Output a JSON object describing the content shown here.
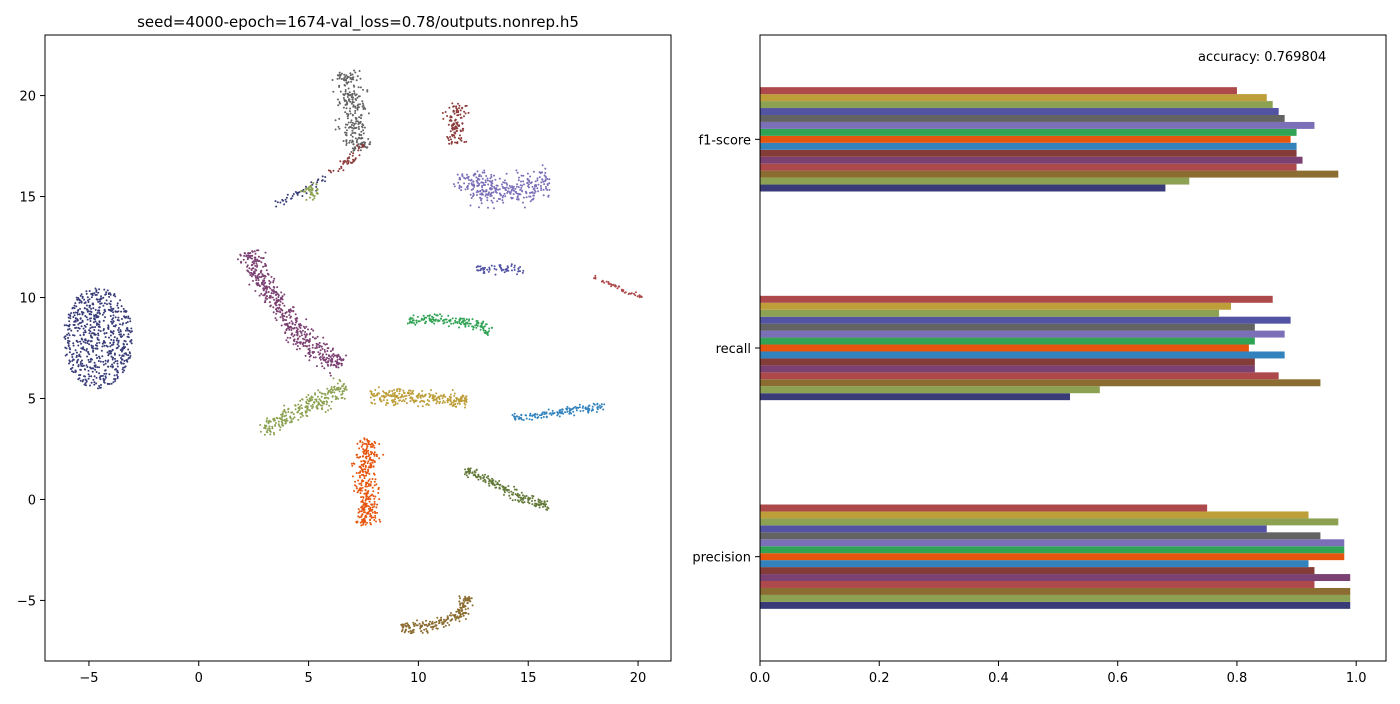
{
  "chart_data": [
    {
      "type": "scatter",
      "title": "seed=4000-epoch=1674-val_loss=0.78/outputs.nonrep.h5",
      "xlabel": "",
      "ylabel": "",
      "xlim": [
        -7,
        21.5
      ],
      "ylim": [
        -8,
        23
      ],
      "xticks": [
        -5,
        0,
        5,
        10,
        15,
        20
      ],
      "yticks": [
        -5,
        0,
        5,
        10,
        15,
        20
      ],
      "xtick_labels": [
        "−5",
        "0",
        "5",
        "10",
        "15",
        "20"
      ],
      "ytick_labels": [
        "−5",
        "0",
        "5",
        "10",
        "15",
        "20"
      ],
      "clusters": [
        {
          "color": "#383c78",
          "shape": "blob",
          "cx": -4.6,
          "cy": 8.0,
          "w": 3.2,
          "h": 5.0,
          "n": 650
        },
        {
          "color": "#636363",
          "shape": "path",
          "path": [
            [
              6.7,
              21.2
            ],
            [
              7.0,
              19.5
            ],
            [
              7.1,
              18.0
            ],
            [
              7.4,
              17.3
            ]
          ],
          "width": 1.1,
          "n": 260
        },
        {
          "color": "#8c3a3a",
          "shape": "path",
          "path": [
            [
              11.8,
              19.6
            ],
            [
              11.6,
              18.4
            ],
            [
              11.7,
              17.6
            ]
          ],
          "width": 0.8,
          "n": 110
        },
        {
          "color": "#7b6fb8",
          "shape": "path",
          "path": [
            [
              12.2,
              16.2
            ],
            [
              12.4,
              15.4
            ],
            [
              14.0,
              15.2
            ],
            [
              16.0,
              15.8
            ]
          ],
          "width": 1.2,
          "n": 330
        },
        {
          "color": "#8c3a3a",
          "shape": "path",
          "path": [
            [
              6.0,
              16.1
            ],
            [
              7.0,
              16.9
            ],
            [
              7.5,
              17.6
            ]
          ],
          "width": 0.35,
          "n": 45
        },
        {
          "color": "#383c78",
          "shape": "path",
          "path": [
            [
              3.4,
              14.6
            ],
            [
              4.8,
              15.3
            ],
            [
              5.9,
              16.0
            ]
          ],
          "width": 0.35,
          "n": 40
        },
        {
          "color": "#8ca252",
          "shape": "path",
          "path": [
            [
              4.9,
              15.5
            ],
            [
              5.3,
              14.9
            ]
          ],
          "width": 0.6,
          "n": 40
        },
        {
          "color": "#5254a3",
          "shape": "path",
          "path": [
            [
              12.6,
              11.4
            ],
            [
              14.8,
              11.4
            ]
          ],
          "width": 0.35,
          "n": 60
        },
        {
          "color": "#ad494a",
          "shape": "path",
          "path": [
            [
              18.0,
              11.0
            ],
            [
              20.2,
              10.0
            ]
          ],
          "width": 0.2,
          "n": 45
        },
        {
          "color": "#7b4173",
          "shape": "path",
          "path": [
            [
              2.4,
              12.3
            ],
            [
              2.7,
              11.0
            ],
            [
              3.6,
              9.8
            ],
            [
              4.3,
              8.4
            ],
            [
              5.5,
              7.3
            ],
            [
              6.5,
              6.6
            ]
          ],
          "width": 0.9,
          "n": 520
        },
        {
          "color": "#31a354",
          "shape": "path",
          "path": [
            [
              9.5,
              8.9
            ],
            [
              11.0,
              8.9
            ],
            [
              12.5,
              8.7
            ],
            [
              13.3,
              8.2
            ]
          ],
          "width": 0.45,
          "n": 170
        },
        {
          "color": "#8ca252",
          "shape": "path",
          "path": [
            [
              2.8,
              3.4
            ],
            [
              4.1,
              4.2
            ],
            [
              5.7,
              5.0
            ],
            [
              6.7,
              5.6
            ]
          ],
          "width": 0.75,
          "n": 260
        },
        {
          "color": "#bd9e39",
          "shape": "path",
          "path": [
            [
              7.8,
              5.1
            ],
            [
              9.5,
              5.1
            ],
            [
              11.0,
              5.0
            ],
            [
              12.2,
              4.9
            ]
          ],
          "width": 0.65,
          "n": 270
        },
        {
          "color": "#e6550d",
          "shape": "path",
          "path": [
            [
              7.8,
              3.0
            ],
            [
              7.6,
              1.8
            ],
            [
              7.6,
              0.4
            ],
            [
              7.7,
              -1.3
            ]
          ],
          "width": 0.9,
          "n": 330
        },
        {
          "color": "#3182bd",
          "shape": "path",
          "path": [
            [
              14.3,
              4.0
            ],
            [
              16.0,
              4.25
            ],
            [
              18.5,
              4.6
            ]
          ],
          "width": 0.32,
          "n": 140
        },
        {
          "color": "#637939",
          "shape": "path",
          "path": [
            [
              12.1,
              1.5
            ],
            [
              13.5,
              0.8
            ],
            [
              14.8,
              0.0
            ],
            [
              16.0,
              -0.3
            ]
          ],
          "width": 0.45,
          "n": 190
        },
        {
          "color": "#8c6d31",
          "shape": "path",
          "path": [
            [
              9.2,
              -6.3
            ],
            [
              10.5,
              -6.3
            ],
            [
              11.8,
              -5.8
            ],
            [
              12.3,
              -4.8
            ]
          ],
          "width": 0.5,
          "n": 210
        }
      ]
    },
    {
      "type": "bar",
      "orientation": "horizontal",
      "annotation": "accuracy: 0.769804",
      "categories": [
        "precision",
        "recall",
        "f1-score"
      ],
      "xlim": [
        0,
        1.05
      ],
      "xticks": [
        0.0,
        0.2,
        0.4,
        0.6,
        0.8,
        1.0
      ],
      "xtick_labels": [
        "0.0",
        "0.2",
        "0.4",
        "0.6",
        "0.8",
        "1.0"
      ],
      "series": [
        {
          "color": "#393b79",
          "values": [
            0.99,
            0.52,
            0.68
          ]
        },
        {
          "color": "#8ca252",
          "values": [
            0.99,
            0.57,
            0.72
          ]
        },
        {
          "color": "#8c6d31",
          "values": [
            0.99,
            0.94,
            0.97
          ]
        },
        {
          "color": "#ad494a",
          "values": [
            0.93,
            0.87,
            0.9
          ]
        },
        {
          "color": "#7b4173",
          "values": [
            0.99,
            0.83,
            0.91
          ]
        },
        {
          "color": "#843c39",
          "values": [
            0.93,
            0.83,
            0.9
          ]
        },
        {
          "color": "#3182bd",
          "values": [
            0.92,
            0.88,
            0.9
          ]
        },
        {
          "color": "#e6550d",
          "values": [
            0.98,
            0.82,
            0.89
          ]
        },
        {
          "color": "#31a354",
          "values": [
            0.98,
            0.83,
            0.9
          ]
        },
        {
          "color": "#7b6fb8",
          "values": [
            0.98,
            0.88,
            0.93
          ]
        },
        {
          "color": "#636363",
          "values": [
            0.94,
            0.83,
            0.88
          ]
        },
        {
          "color": "#5254a3",
          "values": [
            0.85,
            0.89,
            0.87
          ]
        },
        {
          "color": "#8ca252",
          "values": [
            0.97,
            0.77,
            0.86
          ]
        },
        {
          "color": "#bd9e39",
          "values": [
            0.92,
            0.79,
            0.85
          ]
        },
        {
          "color": "#ad494a",
          "values": [
            0.75,
            0.86,
            0.8
          ]
        }
      ]
    }
  ]
}
